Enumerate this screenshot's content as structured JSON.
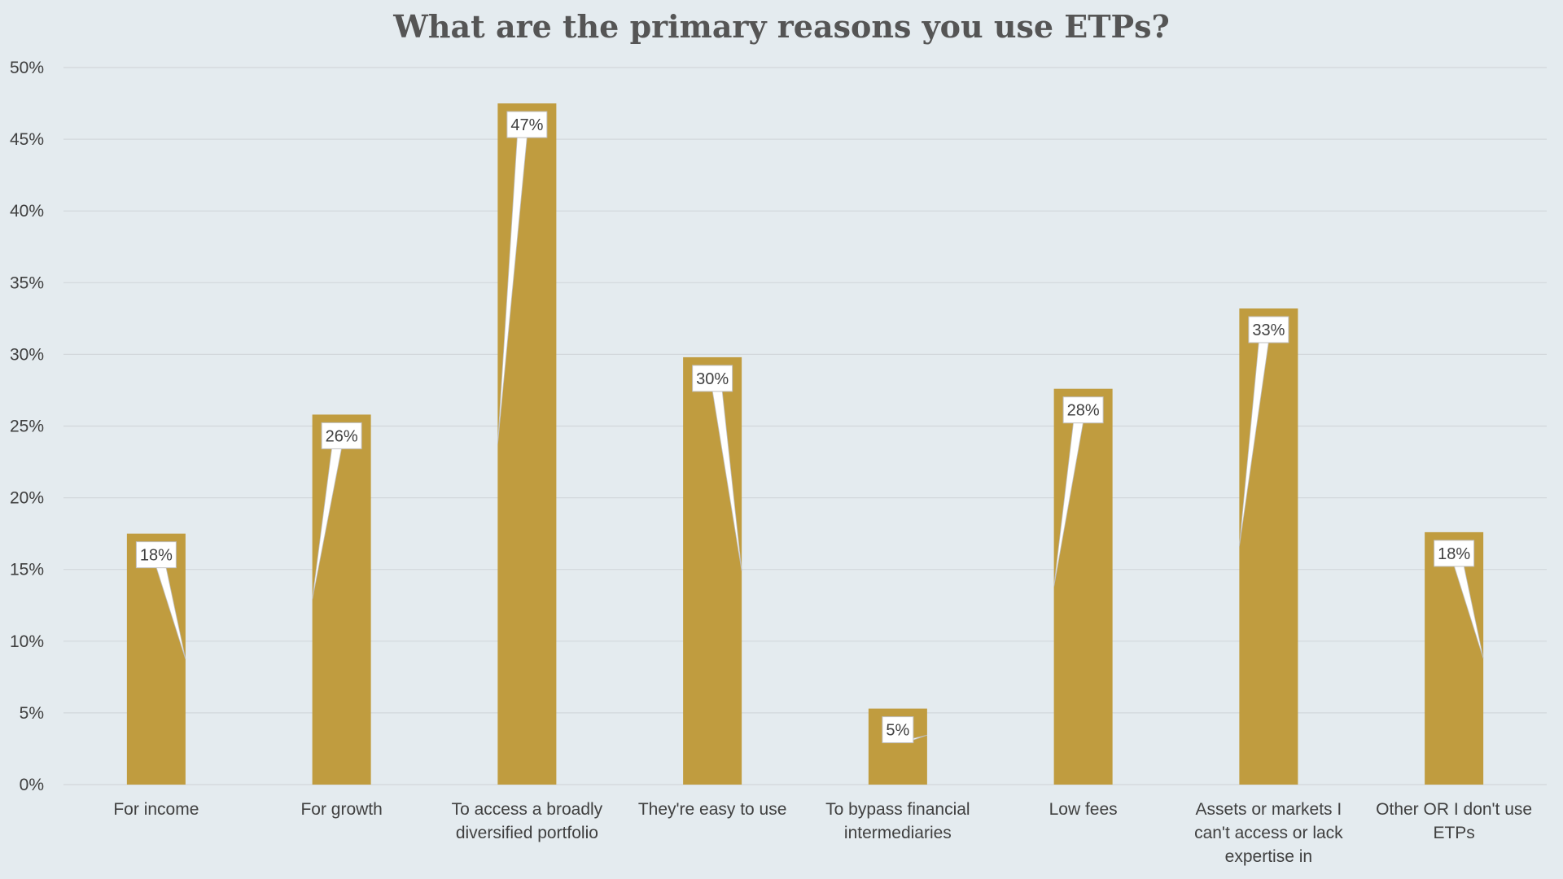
{
  "chart_data": {
    "type": "bar",
    "title": "What are the primary reasons you use ETPs?",
    "xlabel": "",
    "ylabel": "",
    "categories": [
      "For income",
      "For growth",
      "To access a broadly diversified portfolio",
      "They're easy to use",
      "To bypass financial intermediaries",
      "Low fees",
      "Assets or markets I can't access or lack expertise in",
      "Other OR I don't use ETPs"
    ],
    "values": [
      17.5,
      25.8,
      47.5,
      29.8,
      5.3,
      27.6,
      33.2,
      17.6
    ],
    "data_labels": [
      "18%",
      "26%",
      "47%",
      "30%",
      "5%",
      "28%",
      "33%",
      "18%"
    ],
    "ylim": [
      0,
      50
    ],
    "yticks": [
      0,
      5,
      10,
      15,
      20,
      25,
      30,
      35,
      40,
      45,
      50
    ],
    "ytick_labels": [
      "0%",
      "5%",
      "10%",
      "15%",
      "20%",
      "25%",
      "30%",
      "35%",
      "40%",
      "45%",
      "50%"
    ],
    "grid": true,
    "legend": "none",
    "colors": {
      "bar": "#c09c3f",
      "background": "#e4ebef",
      "grid": "#d2d7db",
      "label_box": "#ffffff",
      "text": "#404040",
      "title": "#555555"
    }
  }
}
